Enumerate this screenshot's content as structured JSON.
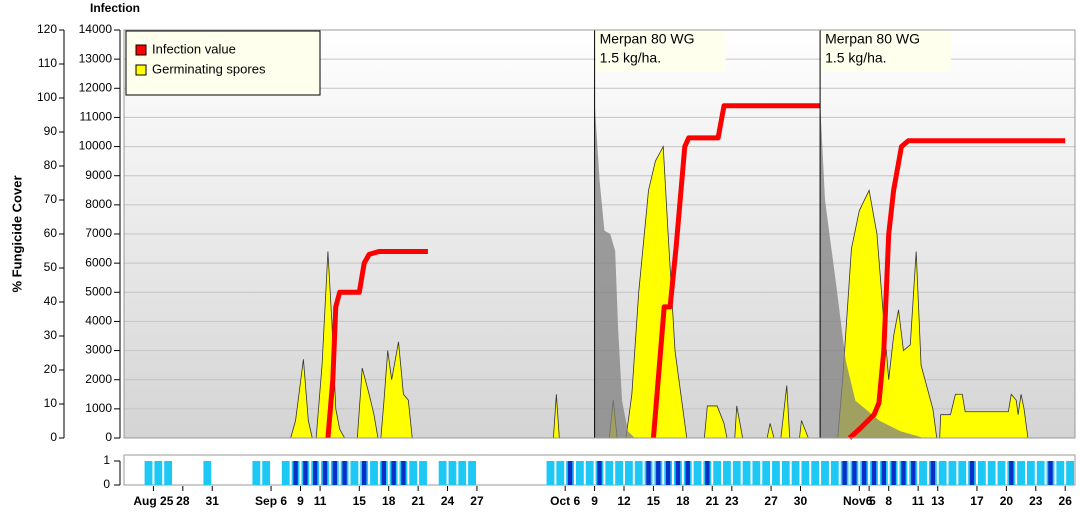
{
  "chart_data": {
    "type": "area",
    "ylabel": "Infection",
    "y2label": "% Fungicide Cover",
    "xlim": [
      0,
      97
    ],
    "xticks": [
      {
        "value": 3,
        "label": "Aug 25"
      },
      {
        "value": 6,
        "label": "28"
      },
      {
        "value": 9,
        "label": "31"
      },
      {
        "value": 15,
        "label": "Sep 6"
      },
      {
        "value": 18,
        "label": "9"
      },
      {
        "value": 20,
        "label": "11"
      },
      {
        "value": 24,
        "label": "15"
      },
      {
        "value": 27,
        "label": "18"
      },
      {
        "value": 30,
        "label": "21"
      },
      {
        "value": 33,
        "label": "24"
      },
      {
        "value": 36,
        "label": "27"
      },
      {
        "value": 45,
        "label": "Oct 6"
      },
      {
        "value": 48,
        "label": "9"
      },
      {
        "value": 51,
        "label": "12"
      },
      {
        "value": 54,
        "label": "15"
      },
      {
        "value": 57,
        "label": "18"
      },
      {
        "value": 60,
        "label": "21"
      },
      {
        "value": 62,
        "label": "23"
      },
      {
        "value": 66,
        "label": "27"
      },
      {
        "value": 69,
        "label": "30"
      },
      {
        "value": 75,
        "label": "Nov 5"
      },
      {
        "value": 76,
        "label": "6"
      },
      {
        "value": 78,
        "label": "8"
      },
      {
        "value": 81,
        "label": "11"
      },
      {
        "value": 83,
        "label": "13"
      },
      {
        "value": 87,
        "label": "17"
      },
      {
        "value": 90,
        "label": "20"
      },
      {
        "value": 93,
        "label": "23"
      },
      {
        "value": 96,
        "label": "26"
      }
    ],
    "ylim": [
      0,
      14000
    ],
    "yticks": [
      0,
      1000,
      2000,
      3000,
      4000,
      5000,
      6000,
      7000,
      8000,
      9000,
      10000,
      11000,
      12000,
      13000,
      14000
    ],
    "y2lim": [
      0,
      120
    ],
    "y2ticks": [
      0,
      10,
      20,
      30,
      40,
      50,
      60,
      70,
      80,
      90,
      100,
      110,
      120
    ],
    "grid": true,
    "legend": "upper left",
    "series": [
      {
        "name": "Infection value",
        "type": "line",
        "color": "#ff0000",
        "x": [
          20.8,
          21.3,
          21.6,
          22,
          24,
          24.5,
          25,
          26,
          31,
          40,
          54,
          55.1,
          55.7,
          56.3,
          57.2,
          57.6,
          60.6,
          61.2,
          71,
          72,
          74,
          75,
          76.5,
          77,
          77.5,
          78,
          78.5,
          79.3,
          80,
          96
        ],
        "values": [
          0,
          2000,
          4500,
          5000,
          5000,
          6000,
          6300,
          6400,
          6400,
          null,
          0,
          4500,
          4500,
          6500,
          10000,
          10300,
          10300,
          11400,
          11400,
          null,
          0,
          300,
          800,
          1200,
          3000,
          7000,
          8500,
          10000,
          10200,
          10200
        ]
      },
      {
        "name": "Germinating spores",
        "type": "area",
        "color": "#ffff00",
        "x": [
          0,
          17,
          17.5,
          18.3,
          18.8,
          19.2,
          19.6,
          20.2,
          20.8,
          21.2,
          21.6,
          22,
          22.5,
          23.8,
          24.3,
          25,
          25.5,
          25.9,
          26.2,
          26.5,
          26.9,
          27.3,
          28,
          28.5,
          29,
          29.4,
          43.8,
          44.1,
          44.4,
          49.5,
          49.9,
          50.3,
          51.2,
          51.8,
          52.5,
          53.5,
          54.2,
          55,
          55.5,
          56.2,
          56.8,
          57.4,
          59.2,
          59.5,
          60.5,
          61.2,
          61.5,
          62.3,
          62.5,
          63.1,
          65.6,
          65.9,
          66.3,
          67,
          67.3,
          67.6,
          67.9,
          68.9,
          69.1,
          69.8,
          72.8,
          73.3,
          74.2,
          75,
          76,
          76.8,
          77.5,
          78,
          78.5,
          79,
          79.5,
          80.2,
          80.8,
          81.3,
          82.5,
          82.9,
          83.2,
          83.3,
          84.3,
          84.8,
          85.5,
          85.8,
          90.2,
          90.5,
          91,
          91.2,
          91.5,
          91.8,
          92.2,
          97
        ],
        "values": [
          0,
          0,
          600,
          2700,
          600,
          0,
          0,
          2500,
          6400,
          4000,
          1000,
          300,
          0,
          0,
          2400,
          1500,
          800,
          0,
          0,
          1200,
          3000,
          2000,
          3300,
          1500,
          1300,
          0,
          0,
          1500,
          0,
          0,
          1300,
          0,
          0,
          1500,
          5000,
          8500,
          9500,
          10000,
          7000,
          3000,
          1500,
          0,
          0,
          1100,
          1100,
          500,
          0,
          0,
          1100,
          0,
          0,
          500,
          0,
          0,
          900,
          1800,
          0,
          0,
          600,
          0,
          0,
          2000,
          6500,
          7800,
          8500,
          7000,
          4000,
          2000,
          3500,
          4400,
          3000,
          3200,
          6400,
          2500,
          1000,
          0,
          0,
          800,
          800,
          1500,
          1500,
          900,
          900,
          1500,
          1300,
          800,
          1500,
          1000,
          0,
          0
        ]
      },
      {
        "type": "area",
        "axis": "y2",
        "color": "#808080",
        "x": [
          48,
          48.5,
          49,
          49.6,
          50.1,
          50.4,
          50.8,
          51.4,
          52.1,
          60,
          71,
          71.5,
          72,
          72.6,
          73.6,
          74.6,
          77.1,
          79.2,
          81.6
        ],
        "values": [
          99,
          76,
          61,
          60,
          55,
          32,
          11,
          2,
          0,
          null,
          99,
          70,
          59,
          46,
          23,
          11,
          5,
          2,
          0
        ]
      }
    ],
    "annotations": [
      {
        "x": 48,
        "text": [
          "Merpan 80 WG",
          "1.5 kg/ha."
        ]
      },
      {
        "x": 71,
        "text": [
          "Merpan 80 WG",
          "1.5 kg/ha."
        ]
      }
    ],
    "strip": {
      "ylim": [
        0,
        1
      ],
      "yticks": [
        0,
        1
      ],
      "x": [
        0,
        1,
        2,
        3,
        4,
        5,
        6,
        7,
        8,
        9,
        10,
        11,
        12,
        13,
        14,
        15,
        16,
        17,
        18,
        19,
        20,
        21,
        22,
        23,
        24,
        25,
        26,
        27,
        28,
        29,
        30,
        31,
        32,
        33,
        34,
        35,
        36,
        37,
        38,
        39,
        40,
        41,
        42,
        43,
        44,
        45,
        46,
        47,
        48,
        49,
        50,
        51,
        52,
        53,
        54,
        55,
        56,
        57,
        58,
        59,
        60,
        61,
        62,
        63,
        64,
        65,
        66,
        67,
        68,
        69,
        70,
        71,
        72,
        73,
        74,
        75,
        76,
        77,
        78,
        79,
        80,
        81,
        82,
        83,
        84,
        85,
        86,
        87,
        88,
        89,
        90,
        91,
        92,
        93,
        94,
        95,
        96
      ],
      "series": [
        {
          "color": "#1ec8f5",
          "values": [
            0,
            0,
            1,
            1,
            1,
            0,
            0,
            0,
            1,
            0,
            0,
            0,
            0,
            1,
            1,
            0,
            1,
            1,
            1,
            1,
            1,
            1,
            1,
            1,
            1,
            1,
            1,
            1,
            1,
            1,
            1,
            0,
            1,
            1,
            1,
            1,
            0,
            0,
            0,
            0,
            0,
            0,
            0,
            1,
            1,
            1,
            1,
            1,
            1,
            1,
            1,
            1,
            1,
            1,
            1,
            1,
            1,
            1,
            1,
            1,
            1,
            1,
            1,
            1,
            1,
            1,
            1,
            1,
            1,
            1,
            1,
            1,
            1,
            1,
            1,
            1,
            1,
            1,
            1,
            1,
            1,
            1,
            1,
            1,
            1,
            1,
            1,
            1,
            1,
            1,
            1,
            1,
            1,
            1,
            1,
            1,
            1
          ]
        },
        {
          "color": "#0a2fc8",
          "values": [
            0,
            0,
            0,
            0,
            0,
            0,
            0,
            0,
            0,
            0,
            0,
            0,
            0,
            0,
            0,
            0,
            0,
            1,
            1,
            1,
            1,
            1,
            1,
            0,
            1,
            0,
            1,
            1,
            1,
            0,
            0,
            0,
            0,
            0,
            0,
            0,
            0,
            0,
            0,
            0,
            0,
            0,
            0,
            0,
            0,
            1,
            0,
            0,
            1,
            0,
            0,
            0,
            0,
            1,
            1,
            1,
            1,
            1,
            0,
            1,
            0,
            0,
            0,
            0,
            0,
            0,
            0,
            0,
            0,
            0,
            0,
            0,
            0,
            1,
            1,
            1,
            1,
            1,
            1,
            1,
            1,
            0,
            1,
            0,
            0,
            0,
            1,
            0,
            0,
            0,
            1,
            0,
            0,
            0,
            1,
            0,
            0
          ]
        }
      ]
    }
  }
}
